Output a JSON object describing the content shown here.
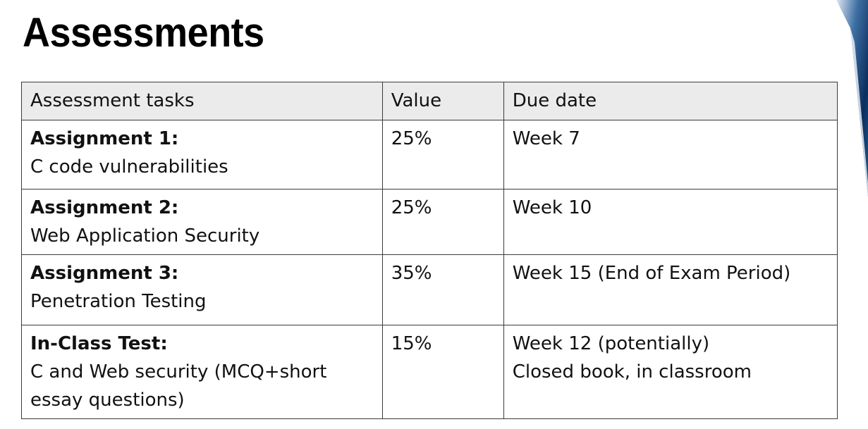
{
  "title": "Assessments",
  "table": {
    "headers": [
      "Assessment tasks",
      "Value",
      "Due date"
    ],
    "rows": [
      {
        "task_title": "Assignment 1:",
        "task_desc": "C code vulnerabilities",
        "value": "25%",
        "due": [
          "Week 7"
        ]
      },
      {
        "task_title": "Assignment 2:",
        "task_desc": "Web Application Security",
        "value": "25%",
        "due": [
          "Week 10"
        ]
      },
      {
        "task_title": "Assignment 3:",
        "task_desc": "Penetration Testing",
        "value": "35%",
        "due": [
          "Week 15 (End of Exam Period)"
        ]
      },
      {
        "task_title": "In-Class Test:",
        "task_desc": "C and Web security (MCQ+short essay questions)",
        "value": "15%",
        "due": [
          "Week 12 (potentially)",
          "Closed book, in classroom"
        ]
      }
    ]
  },
  "colors": {
    "header_bg": "#ebebeb",
    "border": "#3a3a3a",
    "text": "#111111",
    "deco_dark": "#0b2f5e",
    "deco_light": "#e6eef7"
  }
}
